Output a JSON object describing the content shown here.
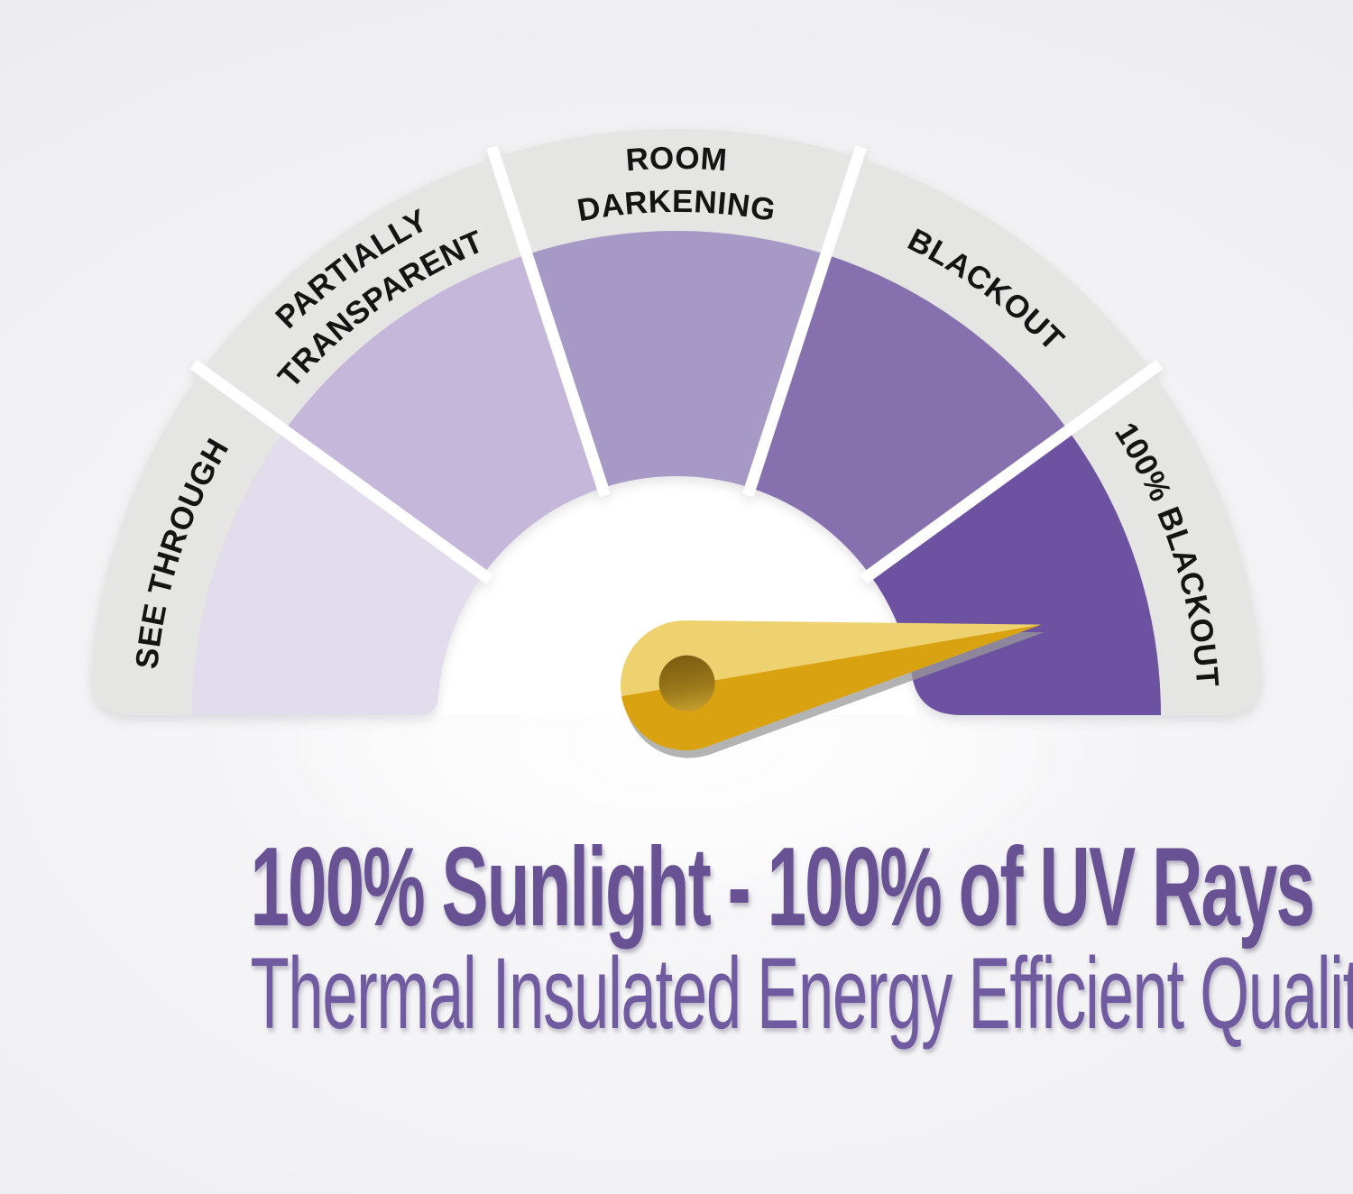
{
  "gauge": {
    "band_color": "#e5e5e3",
    "label_color": "#141414",
    "divider_color": "#ffffff",
    "inner_disc_color": "#ffffff",
    "segments": [
      {
        "id": "see-through",
        "label_lines": [
          "SEE THROUGH"
        ],
        "fill": "#e2dcec"
      },
      {
        "id": "partially-transparent",
        "label_lines": [
          "PARTIALLY",
          "TRANSPARENT"
        ],
        "fill": "#c5b7d9"
      },
      {
        "id": "room-darkening",
        "label_lines": [
          "ROOM",
          "DARKENING"
        ],
        "fill": "#a799c6"
      },
      {
        "id": "blackout",
        "label_lines": [
          "BLACKOUT"
        ],
        "fill": "#8671ae"
      },
      {
        "id": "100-blackout",
        "label_lines": [
          "100% BLACKOUT"
        ],
        "fill": "#6c52a0"
      }
    ],
    "needle": {
      "points_to": "100% BLACKOUT",
      "angle_deg": -9.7,
      "light_color": "#eed26f",
      "dark_color": "#d8a211",
      "hole_top_color": "#7c5c12",
      "hole_bottom_color": "#c79f2e",
      "shadow_color": "#9a9a9a"
    }
  },
  "headline": {
    "title": "100% Sunlight - 100% of UV Rays",
    "title_color": "#685293",
    "subtitle": "Thermal Insulated Energy Efficient Quality",
    "subtitle_color": "#705aa0"
  }
}
